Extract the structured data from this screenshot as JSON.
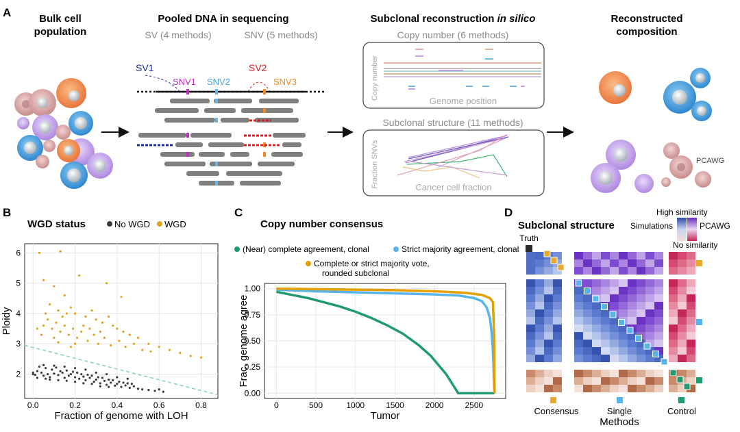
{
  "panel_a": {
    "letter": "A",
    "bulk_title": [
      "Bulk cell",
      "population"
    ],
    "pooled_title": "Pooled DNA in sequencing",
    "sv_methods": "SV (4 methods)",
    "snv_methods": "SNV (5 methods)",
    "variant_labels": {
      "sv1": "SV1",
      "snv1": "SNV1",
      "snv2": "SNV2",
      "sv2": "SV2",
      "snv3": "SNV3"
    },
    "recon_title_main": "Subclonal reconstruction ",
    "recon_title_italic": "in silico",
    "cn_title": "Copy number (6 methods)",
    "cn_ylabel": "Copy number",
    "cn_xlabel": "Genome position",
    "struct_title": "Subclonal structure (11 methods)",
    "struct_ylabel": "Fraction SNVs",
    "struct_xlabel": "Cancer cell fraction",
    "result_title": [
      "Reconstructed",
      "composition"
    ],
    "pcawg_label": "PCAWG",
    "colors": {
      "orange": "#f08d4f",
      "blue": "#4aa3e0",
      "purple": "#b48be0",
      "pink": "#d49a9a",
      "sv1": "#1a2a9c",
      "snv1": "#c02fc0",
      "snv2": "#6cb3e6",
      "sv2": "#d42020",
      "snv3": "#f08a1c"
    }
  },
  "panel_b": {
    "letter": "B",
    "title": "WGD status",
    "legend": [
      {
        "label": "No WGD",
        "color": "#3a3a3a"
      },
      {
        "label": "WGD",
        "color": "#e0a120"
      }
    ],
    "xlabel": "Fraction of genome with LOH",
    "ylabel": "Ploidy"
  },
  "panel_c": {
    "letter": "C",
    "title": "Copy number consensus",
    "legend": [
      {
        "label": "(Near) complete agreement, clonal",
        "color": "#1f9b6f"
      },
      {
        "label": "Strict majority agreement, clonal",
        "color": "#56b4e9"
      },
      {
        "label": "Complete or strict majority vote,",
        "label2": "rounded subclonal",
        "color": "#e69f00"
      }
    ],
    "xlabel": "Tumor",
    "ylabel": "Frac. genome agree"
  },
  "panel_d": {
    "letter": "D",
    "title": "Subclonal structure",
    "scale_high": "High similarity",
    "scale_sim": "Simulations",
    "scale_pcawg": "PCAWG",
    "scale_low": "No similarity",
    "truth": "Truth",
    "groups": [
      "Consensus",
      "Single",
      "Control"
    ],
    "methods_label": "Methods",
    "group_colors": {
      "truth": "#2b2b2b",
      "consensus": "#e8a82a",
      "single": "#56b4e9",
      "control": "#1f9b6f"
    }
  },
  "chart_data": [
    {
      "type": "scatter",
      "title": "WGD status",
      "xlabel": "Fraction of genome with LOH",
      "ylabel": "Ploidy",
      "xlim": [
        -0.04,
        0.88
      ],
      "ylim": [
        1.2,
        6.3
      ],
      "xticks": [
        0.0,
        0.2,
        0.4,
        0.6,
        0.8
      ],
      "xtick_labels": [
        "0.0",
        "0.2",
        "0.4",
        "0.6",
        "0.8"
      ],
      "yticks": [
        2,
        3,
        4,
        5,
        6
      ],
      "ytick_labels": [
        "2",
        "3",
        "4",
        "5",
        "6"
      ],
      "grid": true,
      "legend_position": "top",
      "separator_line": {
        "x": [
          -0.04,
          0.88
        ],
        "y": [
          2.95,
          1.32
        ],
        "style": "dashed",
        "color": "#7fd1c4"
      },
      "series": [
        {
          "name": "No WGD",
          "color": "#3a3a3a",
          "points": [
            [
              0.02,
              2.1
            ],
            [
              0.04,
              2.05
            ],
            [
              0.05,
              1.95
            ],
            [
              0.07,
              2.0
            ],
            [
              0.08,
              1.9
            ],
            [
              0.1,
              2.02
            ],
            [
              0.12,
              1.97
            ],
            [
              0.14,
              2.05
            ],
            [
              0.15,
              1.88
            ],
            [
              0.17,
              1.95
            ],
            [
              0.18,
              2.0
            ],
            [
              0.2,
              1.9
            ],
            [
              0.22,
              1.85
            ],
            [
              0.24,
              1.92
            ],
            [
              0.25,
              1.8
            ],
            [
              0.27,
              1.88
            ],
            [
              0.29,
              1.75
            ],
            [
              0.3,
              1.82
            ],
            [
              0.32,
              1.7
            ],
            [
              0.34,
              1.78
            ],
            [
              0.35,
              1.65
            ],
            [
              0.37,
              1.72
            ],
            [
              0.39,
              1.62
            ],
            [
              0.4,
              1.68
            ],
            [
              0.42,
              1.58
            ],
            [
              0.44,
              1.63
            ],
            [
              0.46,
              1.55
            ],
            [
              0.48,
              1.6
            ],
            [
              0.5,
              1.52
            ],
            [
              0.52,
              1.5
            ],
            [
              0.55,
              1.48
            ],
            [
              0.58,
              1.45
            ],
            [
              0.6,
              1.5
            ],
            [
              0.62,
              1.42
            ],
            [
              0.03,
              2.25
            ],
            [
              0.06,
              2.2
            ],
            [
              0.09,
              2.15
            ],
            [
              0.11,
              2.22
            ],
            [
              0.13,
              2.1
            ],
            [
              0.16,
              2.12
            ],
            [
              0.19,
              2.08
            ],
            [
              0.21,
              2.05
            ],
            [
              0.23,
              2.0
            ],
            [
              0.26,
              1.98
            ],
            [
              0.28,
              1.95
            ],
            [
              0.31,
              1.9
            ],
            [
              0.33,
              1.88
            ],
            [
              0.36,
              1.82
            ],
            [
              0.38,
              1.8
            ],
            [
              0.41,
              1.75
            ],
            [
              0.43,
              1.72
            ],
            [
              0.45,
              1.7
            ],
            [
              0.47,
              1.68
            ],
            [
              0.01,
              1.98
            ],
            [
              0.0,
              2.05
            ],
            [
              0.0,
              2.0
            ],
            [
              0.05,
              2.3
            ],
            [
              0.1,
              2.28
            ],
            [
              0.15,
              2.25
            ],
            [
              0.2,
              2.2
            ],
            [
              0.25,
              2.15
            ],
            [
              0.3,
              2.05
            ],
            [
              0.35,
              2.0
            ],
            [
              0.4,
              1.9
            ],
            [
              0.45,
              1.85
            ],
            [
              0.08,
              1.82
            ],
            [
              0.12,
              1.8
            ],
            [
              0.16,
              1.78
            ],
            [
              0.2,
              1.75
            ],
            [
              0.24,
              1.7
            ],
            [
              0.28,
              1.68
            ],
            [
              0.32,
              1.6
            ],
            [
              0.36,
              1.58
            ],
            [
              0.02,
              1.88
            ],
            [
              0.06,
              1.85
            ]
          ]
        },
        {
          "name": "WGD",
          "color": "#e0a120",
          "points": [
            [
              0.03,
              6.0
            ],
            [
              0.13,
              6.05
            ],
            [
              0.05,
              5.1
            ],
            [
              0.1,
              4.9
            ],
            [
              0.22,
              5.25
            ],
            [
              0.35,
              5.0
            ],
            [
              0.42,
              4.55
            ],
            [
              0.15,
              4.6
            ],
            [
              0.08,
              4.3
            ],
            [
              0.12,
              4.1
            ],
            [
              0.18,
              4.2
            ],
            [
              0.2,
              4.0
            ],
            [
              0.25,
              3.9
            ],
            [
              0.28,
              4.1
            ],
            [
              0.3,
              3.8
            ],
            [
              0.33,
              3.7
            ],
            [
              0.36,
              3.9
            ],
            [
              0.38,
              3.6
            ],
            [
              0.4,
              3.5
            ],
            [
              0.43,
              3.4
            ],
            [
              0.46,
              3.3
            ],
            [
              0.5,
              3.2
            ],
            [
              0.55,
              3.0
            ],
            [
              0.6,
              2.9
            ],
            [
              0.65,
              2.8
            ],
            [
              0.7,
              2.7
            ],
            [
              0.75,
              2.6
            ],
            [
              0.8,
              2.55
            ],
            [
              0.05,
              3.6
            ],
            [
              0.07,
              3.8
            ],
            [
              0.09,
              3.5
            ],
            [
              0.11,
              3.7
            ],
            [
              0.13,
              3.4
            ],
            [
              0.15,
              3.6
            ],
            [
              0.17,
              3.3
            ],
            [
              0.19,
              3.5
            ],
            [
              0.21,
              3.2
            ],
            [
              0.23,
              3.4
            ],
            [
              0.26,
              3.1
            ],
            [
              0.29,
              3.3
            ],
            [
              0.31,
              3.0
            ],
            [
              0.34,
              3.2
            ],
            [
              0.37,
              2.95
            ],
            [
              0.41,
              3.1
            ],
            [
              0.44,
              2.9
            ],
            [
              0.48,
              3.0
            ],
            [
              0.52,
              2.8
            ],
            [
              0.56,
              2.75
            ],
            [
              0.14,
              3.9
            ],
            [
              0.16,
              4.0
            ],
            [
              0.24,
              3.6
            ],
            [
              0.27,
              3.5
            ],
            [
              0.32,
              3.4
            ],
            [
              0.06,
              4.0
            ],
            [
              0.04,
              3.3
            ],
            [
              0.1,
              3.2
            ],
            [
              0.2,
              3.0
            ],
            [
              0.02,
              3.5
            ],
            [
              0.12,
              3.05
            ],
            [
              0.18,
              2.9
            ]
          ]
        }
      ]
    },
    {
      "type": "line",
      "title": "Copy number consensus",
      "xlabel": "Tumor",
      "ylabel": "Frac. genome agree",
      "xlim": [
        -150,
        2900
      ],
      "ylim": [
        -0.05,
        1.05
      ],
      "xticks": [
        0,
        500,
        1000,
        1500,
        2000,
        2500
      ],
      "xtick_labels": [
        "0",
        "500",
        "1000",
        "1500",
        "2000",
        "2500"
      ],
      "yticks": [
        0.0,
        0.25,
        0.5,
        0.75,
        1.0
      ],
      "ytick_labels": [
        "0.00",
        "0.25",
        "0.50",
        "0.75",
        "1.00"
      ],
      "grid": true,
      "legend_position": "top",
      "series": [
        {
          "name": "(Near) complete agreement, clonal",
          "color": "#1f9b6f",
          "x": [
            0,
            200,
            400,
            600,
            800,
            1000,
            1200,
            1400,
            1600,
            1800,
            1950,
            2050,
            2150,
            2250,
            2300,
            2400,
            2500,
            2600,
            2700,
            2760
          ],
          "y": [
            0.97,
            0.94,
            0.91,
            0.87,
            0.83,
            0.78,
            0.72,
            0.65,
            0.57,
            0.46,
            0.36,
            0.27,
            0.18,
            0.06,
            0.0,
            0.0,
            0.0,
            0.0,
            0.0,
            0.0
          ]
        },
        {
          "name": "Strict majority agreement, clonal",
          "color": "#56b4e9",
          "x": [
            0,
            500,
            1000,
            1500,
            2000,
            2300,
            2500,
            2600,
            2660,
            2700,
            2720,
            2735,
            2745,
            2750,
            2755,
            2760
          ],
          "y": [
            0.99,
            0.975,
            0.965,
            0.955,
            0.945,
            0.935,
            0.91,
            0.88,
            0.82,
            0.72,
            0.6,
            0.45,
            0.3,
            0.15,
            0.05,
            0.0
          ]
        },
        {
          "name": "Complete or strict majority vote, rounded subclonal",
          "color": "#e69f00",
          "x": [
            0,
            500,
            1000,
            1500,
            2000,
            2400,
            2600,
            2700,
            2740,
            2755,
            2760
          ],
          "y": [
            1.0,
            0.995,
            0.99,
            0.985,
            0.975,
            0.96,
            0.94,
            0.91,
            0.87,
            0.5,
            0.0
          ]
        }
      ]
    },
    {
      "type": "heatmap",
      "title": "Subclonal structure",
      "xlabel": "Methods",
      "column_groups": [
        "Consensus",
        "Single",
        "Control"
      ],
      "legend_labels": [
        "High similarity",
        "Simulations",
        "PCAWG",
        "No similarity"
      ]
    }
  ]
}
